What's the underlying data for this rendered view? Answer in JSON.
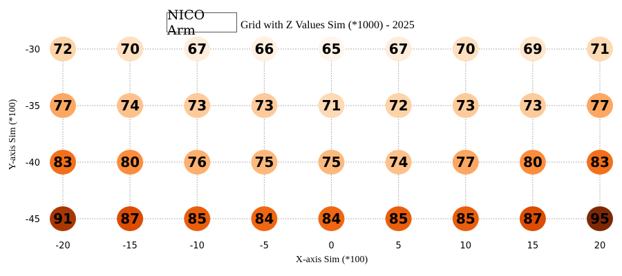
{
  "legend_label": "NICO Arm",
  "chart_data": {
    "type": "heatmap",
    "title": "Grid with Z Values Sim (*1000) - 2025",
    "xlabel": "X-axis Sim (*100)",
    "ylabel": "Y-axis Sim (*100)",
    "x": [
      -20,
      -15,
      -10,
      -5,
      0,
      5,
      10,
      15,
      20
    ],
    "y": [
      -30,
      -35,
      -40,
      -45
    ],
    "grid": true,
    "colormap": "Oranges",
    "z": [
      [
        72,
        70,
        67,
        66,
        65,
        67,
        70,
        69,
        71
      ],
      [
        77,
        74,
        73,
        73,
        71,
        72,
        73,
        73,
        77
      ],
      [
        83,
        80,
        76,
        75,
        75,
        74,
        77,
        80,
        83
      ],
      [
        91,
        87,
        85,
        84,
        84,
        85,
        85,
        87,
        95
      ]
    ]
  }
}
